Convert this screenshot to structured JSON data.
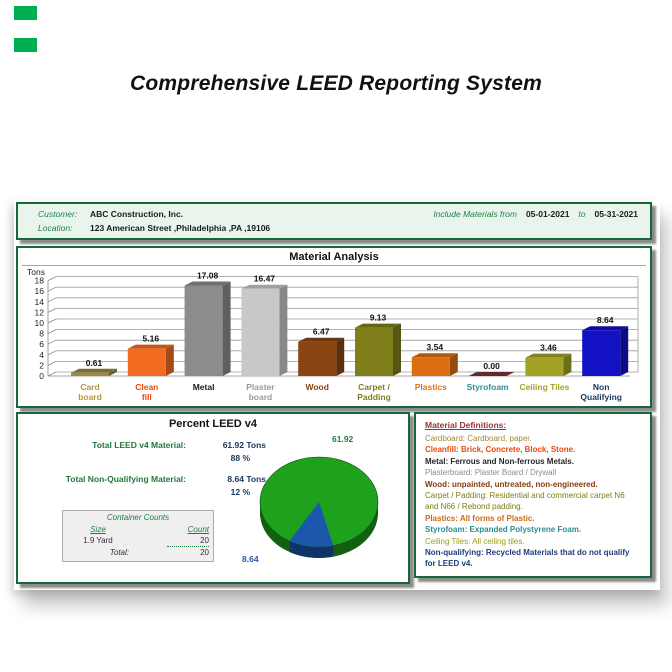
{
  "page": {
    "title": "Comprehensive LEED Reporting System",
    "background": "#ffffff",
    "accent_green": "#17673B",
    "marker_color": "#00B050"
  },
  "header": {
    "customer_label": "Customer:",
    "customer_value": "ABC Construction, Inc.",
    "location_label": "Location:",
    "location_value": "123 American Street ,Philadelphia ,PA ,19106",
    "include_materials_label": "Include Materials from",
    "date_from": "05-01-2021",
    "to_label": "to",
    "date_to": "05-31-2021",
    "panel_bg": "#E9F5EC",
    "label_color": "#1E8148"
  },
  "chart_data": [
    {
      "type": "bar",
      "title": "Material Analysis",
      "ylabel": "Tons",
      "xlabel": "",
      "ylim": [
        0,
        18
      ],
      "ytick_step": 2,
      "grid": true,
      "style": "3d",
      "categories": [
        "Card board",
        "Clean fill",
        "Metal",
        "Plaster board",
        "Wood",
        "Carpet / Padding",
        "Plastics",
        "Styrofoam",
        "Ceiling Tiles",
        "Non Qualifying"
      ],
      "category_lines": [
        [
          "Card",
          "board"
        ],
        [
          "Clean",
          "fill"
        ],
        [
          "Metal"
        ],
        [
          "Plaster",
          "board"
        ],
        [
          "Wood"
        ],
        [
          "Carpet /",
          "Padding"
        ],
        [
          "Plastics"
        ],
        [
          "Styrofoam"
        ],
        [
          "Ceiling Tiles"
        ],
        [
          "Non",
          "Qualifying"
        ]
      ],
      "values": [
        0.61,
        5.16,
        17.08,
        16.47,
        6.47,
        9.13,
        3.54,
        0.0,
        3.46,
        8.64
      ],
      "bar_colors": [
        "#9A8A42",
        "#F26B21",
        "#8C8C8C",
        "#C8C8C8",
        "#8A4513",
        "#7E7E1A",
        "#DC6E12",
        "#7A3535",
        "#A2A224",
        "#1212C4"
      ],
      "label_colors": [
        "#B9953F",
        "#F4430B",
        "#1A1A1A",
        "#9A9A9A",
        "#8F3B0E",
        "#7E7E1A",
        "#E3700F",
        "#2E8B9B",
        "#A2A224",
        "#17375E"
      ]
    },
    {
      "type": "pie",
      "title": "Percent LEED v4",
      "labels": [
        "LEED v4",
        "Non-Qualifying"
      ],
      "values": [
        61.92,
        8.64
      ],
      "percentages": [
        88,
        12
      ],
      "colors": [
        "#1EA21E",
        "#1C57AC"
      ],
      "legend_position": "none"
    }
  ],
  "percent_panel": {
    "title": "Percent LEED v4",
    "stats": [
      {
        "label": "Total LEED v4 Material:",
        "tons": "61.92 Tons",
        "pct": "88 %"
      },
      {
        "label": "Total Non-Qualifying Material:",
        "tons": "8.64 Tons",
        "pct": "12 %"
      }
    ],
    "container_counts": {
      "title": "Container Counts",
      "size_header": "Size",
      "count_header": "Count",
      "rows": [
        {
          "size": "1.9 Yard",
          "count": "20"
        }
      ],
      "total_label": "Total:",
      "total_count": "20"
    },
    "pie_value_labels": {
      "leed": "61.92",
      "non_qualifying": "8.64"
    },
    "label_color": "#1E7B3E",
    "value_color": "#17375E",
    "pie_label_colors": {
      "leed": "#1E7B3E",
      "non_qualifying": "#1F5AA8"
    }
  },
  "definitions": {
    "title": "Material Definitions:",
    "title_color": "#943634",
    "items": [
      {
        "text": "Cardboard: Cardboard, paper.",
        "color": "#A08A3C",
        "bold": false
      },
      {
        "text": "Cleanfill: Brick, Concrete, Block, Stone.",
        "color": "#E8490F",
        "bold": true
      },
      {
        "text": "Metal: Ferrous and Non-ferrous Metals.",
        "color": "#262626",
        "bold": true
      },
      {
        "text": "Plasterboard: Plaster Board / Drywall",
        "color": "#8C8C8C",
        "bold": false
      },
      {
        "text": "Wood: unpainted, untreated, non-engineered.",
        "color": "#843C0C",
        "bold": true
      },
      {
        "text": "Carpet / Padding: Residential and commercial carpet N6 and N66 / Rebond padding.",
        "color": "#7E7E10",
        "bold": false
      },
      {
        "text": "Plastics: All forms of Plastic.",
        "color": "#D2690F",
        "bold": true
      },
      {
        "text": "Styrofoam: Expanded Polystyrene Foam.",
        "color": "#2E8B8B",
        "bold": true
      },
      {
        "text": "Ceiling Tiles: All ceiling tiles.",
        "color": "#9C9C14",
        "bold": false
      },
      {
        "text": "Non-qualifying: Recycled Materials that do not qualify for LEED v4.",
        "color": "#1F3C78",
        "bold": true
      }
    ]
  }
}
